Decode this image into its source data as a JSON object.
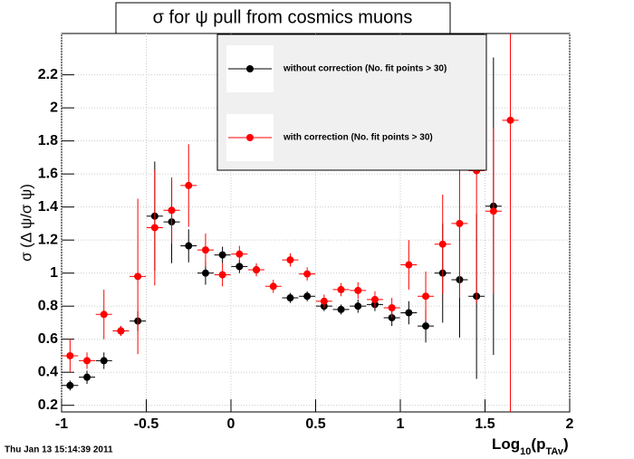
{
  "chart_data": {
    "type": "errorbar",
    "title": "σ for ψ pull from cosmics muons",
    "x_label_parts": [
      "Log",
      "10",
      "(p",
      "TAv",
      ")"
    ],
    "y_label": "σ (Δ ψ/σ ψ)",
    "timestamp": "Thu Jan 13 15:14:39 2011",
    "x": [
      -0.95,
      -0.85,
      -0.75,
      -0.65,
      -0.55,
      -0.45,
      -0.35,
      -0.25,
      -0.15,
      -0.05,
      0.05,
      0.15,
      0.25,
      0.35,
      0.45,
      0.55,
      0.65,
      0.75,
      0.85,
      0.95,
      1.05,
      1.15,
      1.25,
      1.35,
      1.45,
      1.55,
      1.65
    ],
    "series": [
      {
        "name": "without correction (No. fit points > 30)",
        "color": "#000000",
        "values": [
          0.32,
          0.37,
          0.47,
          0.65,
          0.71,
          1.345,
          1.31,
          1.165,
          1.0,
          1.11,
          1.04,
          1.02,
          null,
          0.85,
          0.86,
          0.8,
          0.78,
          0.8,
          0.81,
          0.73,
          0.76,
          0.68,
          1.0,
          0.96,
          0.86,
          1.405,
          null
        ],
        "errors": [
          0.03,
          0.04,
          0.05,
          0.03,
          0.06,
          0.33,
          0.25,
          0.1,
          0.07,
          0.05,
          0.04,
          0.03,
          null,
          0.03,
          0.03,
          0.03,
          0.03,
          0.04,
          0.04,
          0.05,
          0.07,
          0.1,
          0.3,
          0.35,
          0.5,
          0.9,
          null
        ]
      },
      {
        "name": "with correction (No. fit points > 30)",
        "color": "#ff0000",
        "values": [
          0.5,
          0.47,
          0.75,
          0.65,
          0.98,
          1.275,
          1.38,
          1.53,
          1.14,
          0.99,
          1.115,
          1.02,
          0.92,
          1.08,
          0.995,
          0.83,
          0.9,
          0.895,
          0.84,
          0.79,
          1.05,
          0.86,
          1.175,
          1.3,
          1.62,
          1.375,
          1.925
        ],
        "errors": [
          0.1,
          0.05,
          0.15,
          0.03,
          0.47,
          0.35,
          0.2,
          0.25,
          0.1,
          0.07,
          0.05,
          0.04,
          0.04,
          0.04,
          0.04,
          0.04,
          0.04,
          0.05,
          0.05,
          0.06,
          0.15,
          0.15,
          0.3,
          0.45,
          0.8,
          0.5,
          1.8
        ]
      }
    ],
    "xlim": [
      -1,
      2
    ],
    "ylim": [
      0.16,
      2.45
    ],
    "xticks": [
      -1,
      -0.5,
      0,
      0.5,
      1,
      1.5,
      2
    ],
    "yticks": [
      0.2,
      0.4,
      0.6,
      0.8,
      1,
      1.2,
      1.4,
      1.6,
      1.8,
      2,
      2.2
    ],
    "grid": true
  }
}
